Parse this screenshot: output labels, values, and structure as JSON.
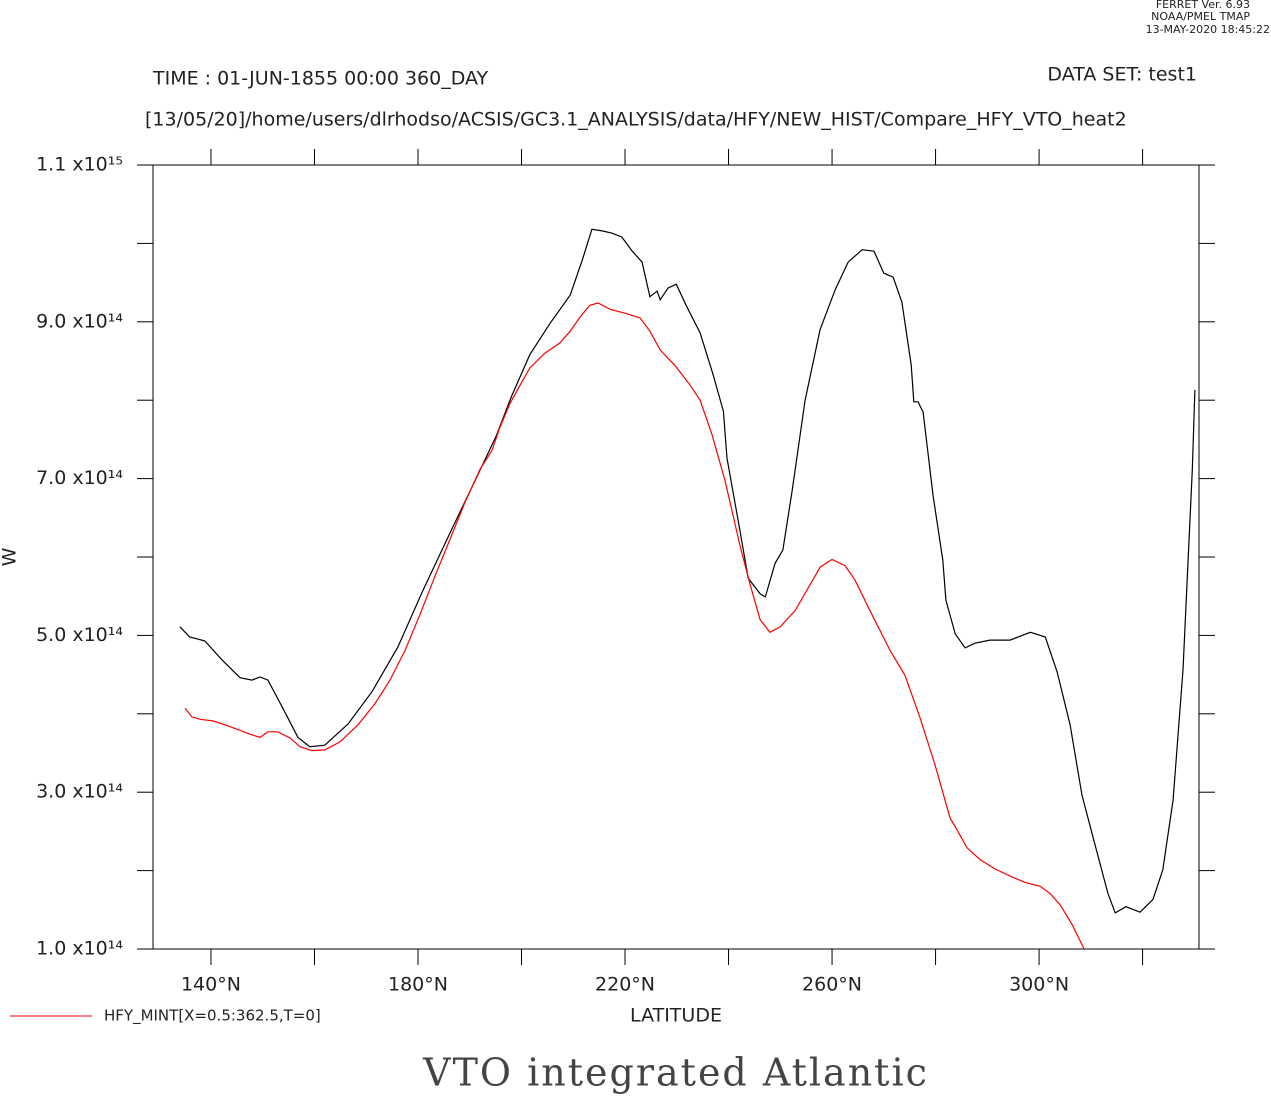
{
  "chart_data": {
    "type": "line",
    "title": "VTO integrated Atlantic",
    "annotations": [
      "FERRET Ver. 6.93",
      "NOAA/PMEL TMAP",
      "13-MAY-2020 18:45:22",
      "TIME : 01-JUN-1855 00:00 360_DAY",
      "DATA SET: test1",
      "[13/05/20]/home/users/dlrhodso/ACSIS/GC3.1_ANALYSIS/data/HFY/NEW_HIST/Compare_HFY_VTO_heat2"
    ],
    "xlabel": "LATITUDE",
    "ylabel": "W",
    "xlim": [
      128.8,
      330.9
    ],
    "ylim": [
      100000000000000.0,
      1100000000000000.0
    ],
    "xticks": [
      {
        "value": 140,
        "label": "140°N"
      },
      {
        "value": 180,
        "label": "180°N"
      },
      {
        "value": 220,
        "label": "220°N"
      },
      {
        "value": 260,
        "label": "260°N"
      },
      {
        "value": 300,
        "label": "300°N"
      }
    ],
    "xminor_ticks": [
      160,
      200,
      240,
      280,
      320
    ],
    "yticks": [
      {
        "value": 100000000000000.0,
        "label": "1.0 x10¹⁴"
      },
      {
        "value": 300000000000000.0,
        "label": "3.0 x10¹⁴"
      },
      {
        "value": 500000000000000.0,
        "label": "5.0 x10¹⁴"
      },
      {
        "value": 700000000000000.0,
        "label": "7.0 x10¹⁴"
      },
      {
        "value": 900000000000000.0,
        "label": "9.0 x10¹⁴"
      },
      {
        "value": 1100000000000000.0,
        "label": "1.1 x10¹⁵"
      }
    ],
    "yminor_ticks": [
      200000000000000.0,
      400000000000000.0,
      600000000000000.0,
      800000000000000.0,
      1000000000000000.0
    ],
    "legend": "bottom-left",
    "series": [
      {
        "color": "#000000",
        "x": [
          134.0,
          135.9,
          138.8,
          142.1,
          145.6,
          147.9,
          149.5,
          151.0,
          153.9,
          156.8,
          159.1,
          162.0,
          166.5,
          171.1,
          176.1,
          180.8,
          186.2,
          191.0,
          195.1,
          198.0,
          201.6,
          205.5,
          209.4,
          211.7,
          213.6,
          215.6,
          217.5,
          219.4,
          221.4,
          223.3,
          224.8,
          226.2,
          226.8,
          228.3,
          229.9,
          231.8,
          234.5,
          237.0,
          239.0,
          239.7,
          242.2,
          243.8,
          246.1,
          247.1,
          249.0,
          250.5,
          252.3,
          254.8,
          257.7,
          260.6,
          263.1,
          265.8,
          268.1,
          270.0,
          271.8,
          273.5,
          275.3,
          275.8,
          276.6,
          277.6,
          279.5,
          281.4,
          282.0,
          283.8,
          285.7,
          287.6,
          290.5,
          294.4,
          298.3,
          301.2,
          303.5,
          306.0,
          308.3,
          310.8,
          313.3,
          314.7,
          316.8,
          319.5,
          322.0,
          323.9,
          325.9,
          327.8,
          329.6,
          330.1
        ],
        "values": [
          511000000000000.0,
          498000000000000.0,
          493000000000000.0,
          469000000000000.0,
          446000000000000.0,
          443000000000000.0,
          447000000000000.0,
          443000000000000.0,
          407000000000000.0,
          370000000000000.0,
          358000000000000.0,
          360000000000000.0,
          387000000000000.0,
          428000000000000.0,
          485000000000000.0,
          555000000000000.0,
          631000000000000.0,
          697000000000000.0,
          754000000000000.0,
          804000000000000.0,
          858000000000000.0,
          898000000000000.0,
          934000000000000.0,
          978000000000000.0,
          1018000000000000.0,
          1016000000000000.0,
          1013000000000000.0,
          1008000000000000.0,
          990000000000000.0,
          976000000000000.0,
          932000000000000.0,
          939000000000000.0,
          928000000000000.0,
          943000000000000.0,
          948000000000000.0,
          921000000000000.0,
          886000000000000.0,
          833000000000000.0,
          786000000000000.0,
          726000000000000.0,
          634000000000000.0,
          573000000000000.0,
          553000000000000.0,
          549000000000000.0,
          592000000000000.0,
          609000000000000.0,
          685000000000000.0,
          800000000000000.0,
          890000000000000.0,
          941000000000000.0,
          976000000000000.0,
          992000000000000.0,
          990000000000000.0,
          962000000000000.0,
          957000000000000.0,
          925000000000000.0,
          845000000000000.0,
          798000000000000.0,
          798000000000000.0,
          785000000000000.0,
          679000000000000.0,
          596000000000000.0,
          545000000000000.0,
          502000000000000.0,
          484000000000000.0,
          490000000000000.0,
          494000000000000.0,
          494000000000000.0,
          504000000000000.0,
          498000000000000.0,
          453000000000000.0,
          386000000000000.0,
          296000000000000.0,
          233000000000000.0,
          171000000000000.0,
          146000000000000.0,
          154000000000000.0,
          147000000000000.0,
          163000000000000.0,
          201000000000000.0,
          290000000000000.0,
          456000000000000.0,
          711000000000000.0,
          813000000000000.0
        ]
      },
      {
        "name": "HFY_MINT[X=0.5:362.5,T=0]",
        "color": "#ff0000",
        "x": [
          135.0,
          136.3,
          137.9,
          140.4,
          142.7,
          145.6,
          147.5,
          149.5,
          151.0,
          152.9,
          155.3,
          157.2,
          159.5,
          162.0,
          164.9,
          168.4,
          171.7,
          174.6,
          177.5,
          180.4,
          183.3,
          186.2,
          189.1,
          192.0,
          194.3,
          195.8,
          197.8,
          199.7,
          201.6,
          204.5,
          207.4,
          209.4,
          211.3,
          213.2,
          214.8,
          217.1,
          220.0,
          222.9,
          224.8,
          226.8,
          229.7,
          232.6,
          234.5,
          236.8,
          239.3,
          242.2,
          244.2,
          246.1,
          248.0,
          250.0,
          252.9,
          255.7,
          257.7,
          260.0,
          262.5,
          264.4,
          267.3,
          271.2,
          274.1,
          277.0,
          279.9,
          282.8,
          284.4,
          286.1,
          288.6,
          291.5,
          294.4,
          297.3,
          300.2,
          302.1,
          304.1,
          306.4,
          308.7
        ],
        "values": [
          407000000000000.0,
          396000000000000.0,
          393000000000000.0,
          391000000000000.0,
          386000000000000.0,
          379000000000000.0,
          374000000000000.0,
          370000000000000.0,
          377000000000000.0,
          377000000000000.0,
          369000000000000.0,
          358000000000000.0,
          353000000000000.0,
          354000000000000.0,
          364000000000000.0,
          386000000000000.0,
          413000000000000.0,
          443000000000000.0,
          481000000000000.0,
          527000000000000.0,
          576000000000000.0,
          623000000000000.0,
          670000000000000.0,
          712000000000000.0,
          736000000000000.0,
          765000000000000.0,
          796000000000000.0,
          819000000000000.0,
          841000000000000.0,
          860000000000000.0,
          873000000000000.0,
          888000000000000.0,
          906000000000000.0,
          921000000000000.0,
          924000000000000.0,
          916000000000000.0,
          911000000000000.0,
          905000000000000.0,
          888000000000000.0,
          864000000000000.0,
          844000000000000.0,
          819000000000000.0,
          800000000000000.0,
          756000000000000.0,
          698000000000000.0,
          615000000000000.0,
          564000000000000.0,
          520000000000000.0,
          504000000000000.0,
          511000000000000.0,
          532000000000000.0,
          564000000000000.0,
          587000000000000.0,
          597000000000000.0,
          589000000000000.0,
          571000000000000.0,
          532000000000000.0,
          481000000000000.0,
          449000000000000.0,
          395000000000000.0,
          335000000000000.0,
          267000000000000.0,
          249000000000000.0,
          229000000000000.0,
          214000000000000.0,
          202000000000000.0,
          193000000000000.0,
          185000000000000.0,
          180000000000000.0,
          171000000000000.0,
          156000000000000.0,
          131000000000000.0,
          100000000000000.0
        ]
      }
    ]
  }
}
